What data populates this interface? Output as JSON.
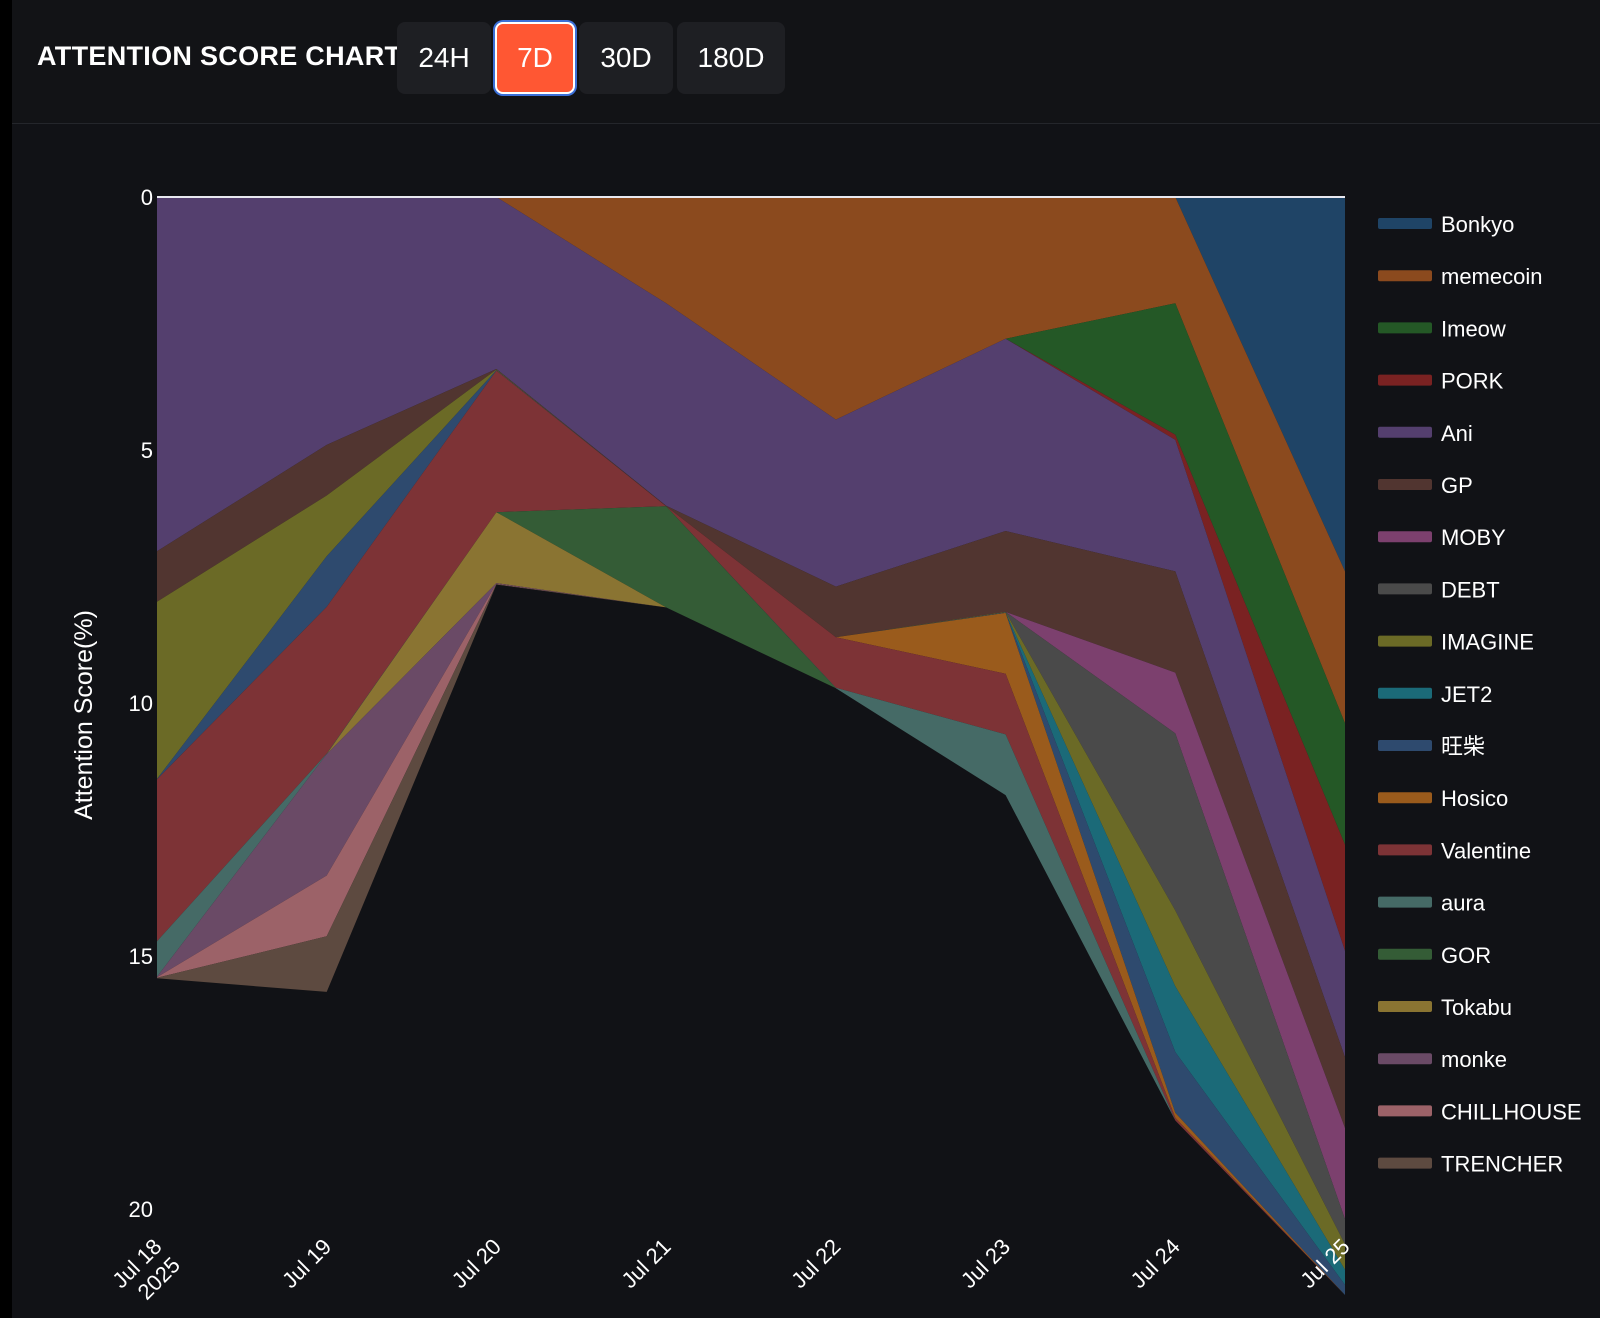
{
  "header": {
    "title": "ATTENTION SCORE CHART",
    "tabs": [
      {
        "label": "24H",
        "active": false
      },
      {
        "label": "7D",
        "active": true
      },
      {
        "label": "30D",
        "active": false
      },
      {
        "label": "180D",
        "active": false
      }
    ]
  },
  "colors": {
    "accent": "#ff5733",
    "background": "#111216",
    "header_bg": "#121316"
  },
  "chart_data": {
    "type": "area",
    "stacked": true,
    "inverted_y": true,
    "ylabel": "Attention Score(%)",
    "xlabel": "",
    "ylim": [
      0,
      20
    ],
    "yticks": [
      "0",
      "5",
      "10",
      "15",
      "20"
    ],
    "x": [
      "Jul 18\n2025",
      "Jul 19",
      "Jul 20",
      "Jul 21",
      "Jul 22",
      "Jul 23",
      "Jul 24",
      "Jul 25"
    ],
    "legend_position": "right",
    "series": [
      {
        "name": "Bonkyo",
        "color": "#1f4466",
        "values": [
          0,
          0,
          0,
          0,
          0,
          0,
          0,
          7.4
        ]
      },
      {
        "name": "memecoin",
        "color": "#8b4a1e",
        "values": [
          0,
          0,
          0,
          2.1,
          4.4,
          2.8,
          2.1,
          3.0
        ]
      },
      {
        "name": "Imeow",
        "color": "#245826",
        "values": [
          0,
          0,
          0,
          0,
          0,
          0,
          2.6,
          2.4
        ]
      },
      {
        "name": "PORK",
        "color": "#7a2222",
        "values": [
          0,
          0,
          0,
          0,
          0,
          0,
          0.1,
          2.1
        ]
      },
      {
        "name": "Ani",
        "color": "#543f6e",
        "values": [
          7.0,
          4.9,
          3.4,
          4.0,
          3.3,
          3.8,
          2.6,
          2.1
        ]
      },
      {
        "name": "GP",
        "color": "#513530",
        "values": [
          1.0,
          1.0,
          0.01,
          0.01,
          1.0,
          1.6,
          2.0,
          1.4
        ]
      },
      {
        "name": "MOBY",
        "color": "#7c406e",
        "values": [
          0,
          0,
          0,
          0,
          0,
          0,
          1.2,
          1.8
        ]
      },
      {
        "name": "DEBT",
        "color": "#4a4a4a",
        "values": [
          0,
          0,
          0,
          0,
          0,
          0,
          3.5,
          0.5
        ]
      },
      {
        "name": "IMAGINE",
        "color": "#6b6a26",
        "values": [
          3.5,
          1.2,
          0.01,
          0,
          0,
          0.01,
          1.5,
          0.5
        ]
      },
      {
        "name": "JET2",
        "color": "#1b6a78",
        "values": [
          0,
          0,
          0,
          0,
          0,
          0,
          1.3,
          0.3
        ]
      },
      {
        "name": "旺柴",
        "color": "#2e4a6e",
        "values": [
          0.01,
          1.0,
          0.01,
          0,
          0,
          0.01,
          1.2,
          0.2
        ]
      },
      {
        "name": "Hosico",
        "color": "#9a5b1c",
        "values": [
          0,
          0,
          0,
          0,
          0,
          1.2,
          0.1,
          0
        ]
      },
      {
        "name": "Valentine",
        "color": "#7d3336",
        "values": [
          3.2,
          2.9,
          2.8,
          0,
          1.0,
          1.2,
          0.05,
          0
        ]
      },
      {
        "name": "aura",
        "color": "#456a66",
        "values": [
          0.7,
          0.01,
          0,
          0,
          0.01,
          1.2,
          0,
          0
        ]
      },
      {
        "name": "GOR",
        "color": "#345c36",
        "values": [
          0,
          0,
          0,
          2.0,
          0,
          0,
          0,
          0
        ]
      },
      {
        "name": "Tokabu",
        "color": "#8a7432",
        "values": [
          0,
          0,
          1.4,
          0,
          0,
          0,
          0,
          0
        ]
      },
      {
        "name": "monke",
        "color": "#6a4a66",
        "values": [
          0.01,
          2.4,
          0.01,
          0,
          0,
          0,
          0,
          0
        ]
      },
      {
        "name": "CHILLHOUSE",
        "color": "#9c6268",
        "values": [
          0.01,
          1.2,
          0.01,
          0,
          0,
          0,
          0,
          0
        ]
      },
      {
        "name": "TRENCHER",
        "color": "#5d4a40",
        "values": [
          0.01,
          1.1,
          0.01,
          0,
          0,
          0,
          0,
          0
        ]
      }
    ]
  }
}
